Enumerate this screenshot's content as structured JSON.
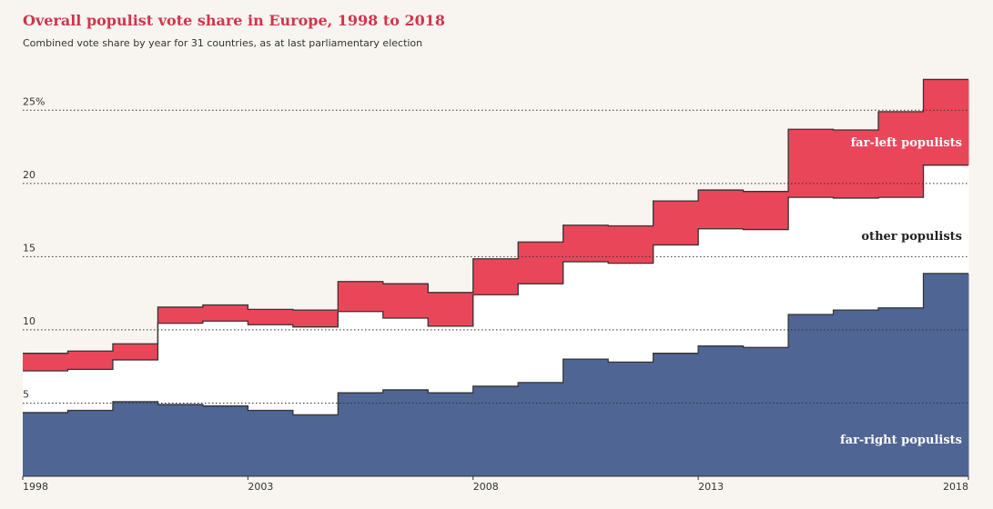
{
  "chart_data": {
    "type": "stacked-step-area",
    "title": "Overall populist vote share in Europe, 1998 to 2018",
    "subtitle": "Combined vote share by year for 31 countries, as at last parliamentary election",
    "x": [
      1998,
      1999,
      2000,
      2001,
      2002,
      2003,
      2004,
      2005,
      2006,
      2007,
      2008,
      2009,
      2010,
      2011,
      2012,
      2013,
      2014,
      2015,
      2016,
      2017,
      2018
    ],
    "xlim": [
      1998,
      2019
    ],
    "xticks": [
      1998,
      2003,
      2008,
      2013,
      2018
    ],
    "ylim": [
      0,
      27.5
    ],
    "yticks": [
      5,
      10,
      15,
      20,
      {
        "value": 25,
        "label": "25%"
      }
    ],
    "grid": true,
    "series": [
      {
        "name": "far-right populists",
        "color": "#4f6594",
        "values": [
          4.35,
          4.5,
          5.1,
          4.9,
          4.8,
          4.5,
          4.2,
          5.7,
          5.9,
          5.7,
          6.15,
          6.4,
          8.0,
          7.8,
          8.4,
          8.9,
          8.8,
          11.05,
          11.35,
          11.5,
          13.85
        ]
      },
      {
        "name": "other populists",
        "color": "#ffffff",
        "values": [
          2.85,
          2.8,
          2.85,
          5.55,
          5.8,
          5.85,
          6.0,
          5.55,
          4.9,
          4.55,
          6.25,
          6.75,
          6.65,
          6.75,
          7.4,
          8.0,
          8.05,
          8.0,
          7.65,
          7.55,
          7.4
        ]
      },
      {
        "name": "far-left populists",
        "color": "#ea465a",
        "values": [
          1.2,
          1.25,
          1.1,
          1.1,
          1.1,
          1.05,
          1.15,
          2.05,
          2.35,
          2.3,
          2.45,
          2.85,
          2.5,
          2.55,
          3.0,
          2.65,
          2.6,
          4.65,
          4.65,
          5.85,
          5.85
        ]
      }
    ]
  }
}
